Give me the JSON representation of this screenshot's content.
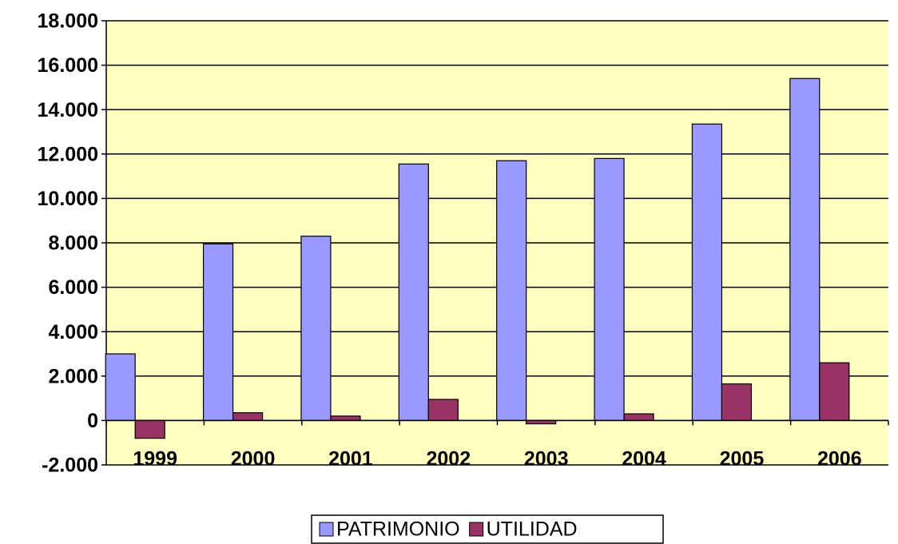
{
  "chart_data": {
    "type": "bar",
    "categories": [
      "1999",
      "2000",
      "2001",
      "2002",
      "2003",
      "2004",
      "2005",
      "2006"
    ],
    "series": [
      {
        "name": "PATRIMONIO",
        "color": "#9999ff",
        "values": [
          3000,
          7950,
          8300,
          11550,
          11700,
          11800,
          13350,
          15400
        ]
      },
      {
        "name": "UTILIDAD",
        "color": "#993366",
        "values": [
          -800,
          350,
          200,
          950,
          -150,
          300,
          1650,
          2600
        ]
      }
    ],
    "ylim": [
      -2000,
      18000
    ],
    "yticks": [
      {
        "value": -2000,
        "label": "-2.000"
      },
      0,
      {
        "value": 2000,
        "label": "2.000"
      },
      {
        "value": 4000,
        "label": "4.000"
      },
      {
        "value": 6000,
        "label": "6.000"
      },
      {
        "value": 8000,
        "label": "8.000"
      },
      {
        "value": 10000,
        "label": "10.000"
      },
      {
        "value": 12000,
        "label": "12.000"
      },
      {
        "value": 14000,
        "label": "14.000"
      },
      {
        "value": 16000,
        "label": "16.000"
      },
      {
        "value": 18000,
        "label": "18.000"
      }
    ],
    "grid": true,
    "legend": "bottom",
    "background": "#ffffc0"
  }
}
